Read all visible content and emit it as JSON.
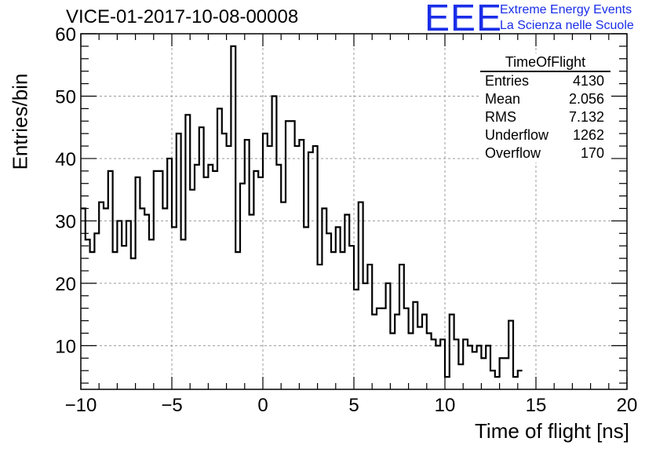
{
  "header": {
    "title": "VICE-01-2017-10-08-00008",
    "logo_letters": "EEE",
    "logo_line1": "Extreme Energy Events",
    "logo_line2": "La Scienza nelle Scuole",
    "logo_color": "#1a2ee8"
  },
  "stats": {
    "title": "TimeOfFlight",
    "rows": [
      {
        "label": "Entries",
        "value": "4130"
      },
      {
        "label": "Mean",
        "value": "2.056"
      },
      {
        "label": "RMS",
        "value": "7.132"
      },
      {
        "label": "Underflow",
        "value": "1262"
      },
      {
        "label": "Overflow",
        "value": "170"
      }
    ]
  },
  "chart_data": {
    "type": "bar",
    "histogram": true,
    "xlabel": "Time of flight [ns]",
    "ylabel": "Entries/bin",
    "xlim": [
      -10,
      20
    ],
    "ylim": [
      3,
      60
    ],
    "bin_width": 0.25,
    "xticks": [
      "−10",
      "−5",
      "0",
      "5",
      "10",
      "15",
      "20"
    ],
    "xtick_values": [
      -10,
      -5,
      0,
      5,
      10,
      15,
      20
    ],
    "yticks": [
      "10",
      "20",
      "30",
      "40",
      "50",
      "60"
    ],
    "ytick_values": [
      10,
      20,
      30,
      40,
      50,
      60
    ],
    "grid": true,
    "line_color": "#000000",
    "values": [
      32,
      27,
      25,
      28,
      33,
      32,
      38,
      25,
      30,
      26,
      30,
      24,
      37,
      32,
      31,
      27,
      38,
      38,
      32,
      40,
      29,
      44,
      27,
      47,
      35,
      39,
      45,
      37,
      39,
      38,
      48,
      44,
      42,
      58,
      25,
      36,
      43,
      31,
      38,
      37,
      44,
      42,
      50,
      39,
      33,
      46,
      46,
      42,
      43,
      29,
      41,
      42,
      23,
      32,
      28,
      25,
      29,
      25,
      31,
      26,
      19,
      33,
      20,
      23,
      15,
      16,
      16,
      20,
      12,
      15,
      23,
      16,
      12,
      17,
      13,
      15,
      12,
      11,
      10,
      11,
      5,
      15,
      11,
      7,
      11,
      10,
      9,
      10,
      8,
      10,
      6,
      5,
      8,
      8,
      14,
      5,
      6
    ]
  }
}
